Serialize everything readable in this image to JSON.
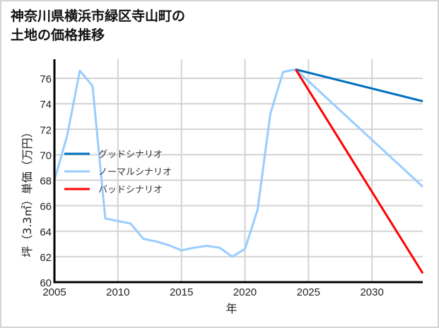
{
  "title_line1": "神奈川県横浜市緑区寺山町の",
  "title_line2": "土地の価格推移",
  "chart_data": {
    "type": "line",
    "title": "神奈川県横浜市緑区寺山町の土地の価格推移",
    "xlabel": "年",
    "ylabel": "坪（3.3㎡）単価（万円）",
    "xlim": [
      2005,
      2034
    ],
    "ylim": [
      60,
      77.5
    ],
    "xticks": [
      2005,
      2010,
      2015,
      2020,
      2025,
      2030
    ],
    "yticks": [
      60,
      62,
      64,
      66,
      68,
      70,
      72,
      74,
      76
    ],
    "grid": true,
    "legend_position": "center-left",
    "series": [
      {
        "name": "グッドシナリオ",
        "color": "#0070c0",
        "x": [
          2024,
          2034
        ],
        "values": [
          76.7,
          74.2
        ]
      },
      {
        "name": "ノーマルシナリオ",
        "color": "#99ccff",
        "x": [
          2005,
          2006,
          2007,
          2008,
          2009,
          2010,
          2011,
          2012,
          2013,
          2014,
          2015,
          2016,
          2017,
          2018,
          2019,
          2020,
          2021,
          2022,
          2023,
          2024,
          2034
        ],
        "values": [
          68.0,
          71.5,
          76.6,
          75.4,
          65.0,
          64.8,
          64.6,
          63.4,
          63.2,
          62.9,
          62.5,
          62.7,
          62.85,
          62.7,
          62.0,
          62.6,
          65.7,
          73.2,
          76.5,
          76.7,
          67.5
        ]
      },
      {
        "name": "バッドシナリオ",
        "color": "#ff0000",
        "x": [
          2024,
          2034
        ],
        "values": [
          76.7,
          60.7
        ]
      }
    ]
  }
}
